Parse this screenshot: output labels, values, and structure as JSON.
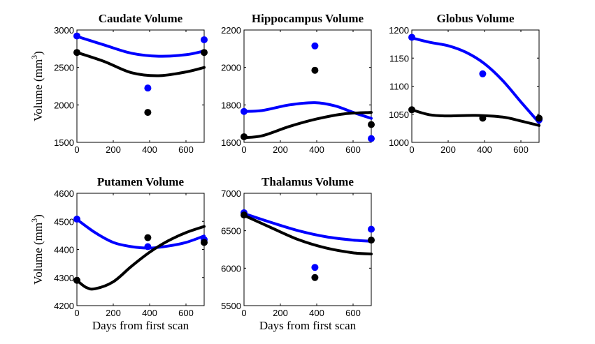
{
  "figure": {
    "ylabel": "Volume (mm",
    "ylabel_sup": "3",
    "ylabel_close": ")",
    "xlabel": "Days from first scan",
    "colors": {
      "series_a": "#0000ff",
      "series_b": "#000000"
    }
  },
  "chart_data": [
    {
      "type": "scatter",
      "title": "Caudate Volume",
      "xlim": [
        0,
        700
      ],
      "ylim": [
        1500,
        3000
      ],
      "xticks": [
        0,
        200,
        400,
        600
      ],
      "yticks": [
        1500,
        2000,
        2500,
        3000
      ],
      "show_ylabel": true,
      "show_xlabel": false,
      "series": [
        {
          "name": "blue",
          "color": "#0000ff",
          "points": [
            [
              0,
              2920
            ],
            [
              390,
              2225
            ],
            [
              700,
              2870
            ]
          ],
          "curve": [
            [
              0,
              2915
            ],
            [
              150,
              2800
            ],
            [
              300,
              2690
            ],
            [
              450,
              2650
            ],
            [
              600,
              2670
            ],
            [
              700,
              2720
            ]
          ]
        },
        {
          "name": "black",
          "color": "#000000",
          "points": [
            [
              0,
              2700
            ],
            [
              390,
              1900
            ],
            [
              700,
              2700
            ]
          ],
          "curve": [
            [
              0,
              2700
            ],
            [
              150,
              2580
            ],
            [
              300,
              2430
            ],
            [
              450,
              2390
            ],
            [
              600,
              2440
            ],
            [
              700,
              2500
            ]
          ]
        }
      ]
    },
    {
      "type": "scatter",
      "title": "Hippocampus Volume",
      "xlim": [
        0,
        700
      ],
      "ylim": [
        1600,
        2200
      ],
      "xticks": [
        0,
        200,
        400,
        600
      ],
      "yticks": [
        1600,
        1800,
        2000,
        2200
      ],
      "show_ylabel": false,
      "show_xlabel": false,
      "series": [
        {
          "name": "blue",
          "color": "#0000ff",
          "points": [
            [
              0,
              1765
            ],
            [
              390,
              2115
            ],
            [
              700,
              1620
            ]
          ],
          "curve": [
            [
              0,
              1765
            ],
            [
              100,
              1770
            ],
            [
              250,
              1800
            ],
            [
              390,
              1812
            ],
            [
              500,
              1795
            ],
            [
              600,
              1760
            ],
            [
              700,
              1728
            ]
          ]
        },
        {
          "name": "black",
          "color": "#000000",
          "points": [
            [
              0,
              1630
            ],
            [
              390,
              1985
            ],
            [
              700,
              1695
            ]
          ],
          "curve": [
            [
              0,
              1625
            ],
            [
              100,
              1635
            ],
            [
              250,
              1685
            ],
            [
              400,
              1725
            ],
            [
              550,
              1752
            ],
            [
              700,
              1760
            ]
          ]
        }
      ]
    },
    {
      "type": "scatter",
      "title": "Globus Volume",
      "xlim": [
        0,
        700
      ],
      "ylim": [
        1000,
        1200
      ],
      "xticks": [
        0,
        200,
        400,
        600
      ],
      "yticks": [
        1000,
        1050,
        1100,
        1150,
        1200
      ],
      "show_ylabel": false,
      "show_xlabel": false,
      "series": [
        {
          "name": "blue",
          "color": "#0000ff",
          "points": [
            [
              0,
              1187
            ],
            [
              390,
              1122
            ],
            [
              700,
              1040
            ]
          ],
          "curve": [
            [
              0,
              1186
            ],
            [
              100,
              1178
            ],
            [
              200,
              1172
            ],
            [
              300,
              1160
            ],
            [
              400,
              1140
            ],
            [
              500,
              1110
            ],
            [
              600,
              1072
            ],
            [
              700,
              1035
            ]
          ]
        },
        {
          "name": "black",
          "color": "#000000",
          "points": [
            [
              0,
              1058
            ],
            [
              390,
              1043
            ],
            [
              700,
              1043
            ]
          ],
          "curve": [
            [
              0,
              1058
            ],
            [
              100,
              1049
            ],
            [
              200,
              1047
            ],
            [
              350,
              1048
            ],
            [
              500,
              1045
            ],
            [
              600,
              1038
            ],
            [
              700,
              1030
            ]
          ]
        }
      ]
    },
    {
      "type": "scatter",
      "title": "Putamen Volume",
      "xlim": [
        0,
        700
      ],
      "ylim": [
        4200,
        4600
      ],
      "xticks": [
        0,
        200,
        400,
        600
      ],
      "yticks": [
        4200,
        4300,
        4400,
        4500,
        4600
      ],
      "show_ylabel": true,
      "show_xlabel": true,
      "series": [
        {
          "name": "blue",
          "color": "#0000ff",
          "points": [
            [
              0,
              4508
            ],
            [
              390,
              4410
            ],
            [
              700,
              4435
            ]
          ],
          "curve": [
            [
              0,
              4507
            ],
            [
              100,
              4460
            ],
            [
              200,
              4425
            ],
            [
              300,
              4410
            ],
            [
              400,
              4405
            ],
            [
              500,
              4412
            ],
            [
              600,
              4425
            ],
            [
              700,
              4448
            ]
          ]
        },
        {
          "name": "black",
          "color": "#000000",
          "points": [
            [
              0,
              4290
            ],
            [
              390,
              4442
            ],
            [
              700,
              4425
            ]
          ],
          "curve": [
            [
              0,
              4290
            ],
            [
              50,
              4265
            ],
            [
              100,
              4260
            ],
            [
              200,
              4285
            ],
            [
              300,
              4340
            ],
            [
              400,
              4390
            ],
            [
              500,
              4430
            ],
            [
              600,
              4460
            ],
            [
              700,
              4482
            ]
          ]
        }
      ]
    },
    {
      "type": "scatter",
      "title": "Thalamus Volume",
      "xlim": [
        0,
        700
      ],
      "ylim": [
        5500,
        7000
      ],
      "xticks": [
        0,
        200,
        400,
        600
      ],
      "yticks": [
        5500,
        6000,
        6500,
        7000
      ],
      "show_ylabel": false,
      "show_xlabel": true,
      "series": [
        {
          "name": "blue",
          "color": "#0000ff",
          "points": [
            [
              0,
              6740
            ],
            [
              390,
              6010
            ],
            [
              700,
              6520
            ]
          ],
          "curve": [
            [
              0,
              6730
            ],
            [
              150,
              6610
            ],
            [
              300,
              6500
            ],
            [
              450,
              6420
            ],
            [
              600,
              6375
            ],
            [
              700,
              6360
            ]
          ]
        },
        {
          "name": "black",
          "color": "#000000",
          "points": [
            [
              0,
              6710
            ],
            [
              390,
              5875
            ],
            [
              700,
              6375
            ]
          ],
          "curve": [
            [
              0,
              6705
            ],
            [
              150,
              6540
            ],
            [
              300,
              6380
            ],
            [
              450,
              6270
            ],
            [
              600,
              6205
            ],
            [
              700,
              6190
            ]
          ]
        }
      ]
    }
  ]
}
